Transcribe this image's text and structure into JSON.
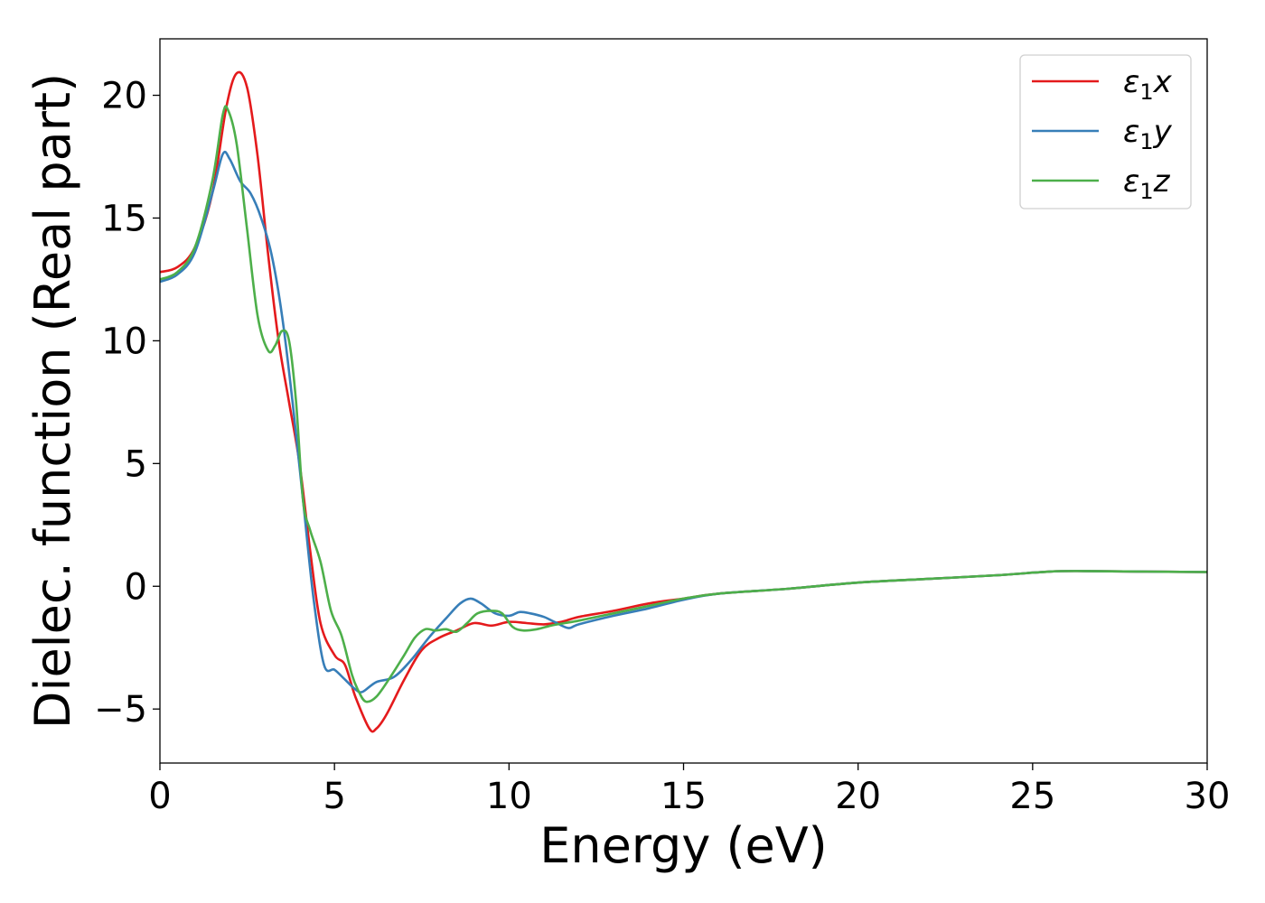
{
  "chart_data": {
    "type": "line",
    "title": "",
    "xlabel": "Energy (eV)",
    "ylabel": "Dielec. function (Real part)",
    "xlim": [
      0,
      30
    ],
    "ylim": [
      -7.2,
      22.3
    ],
    "xticks": [
      0,
      5,
      10,
      15,
      20,
      25,
      30
    ],
    "xtick_labels": [
      "0",
      "5",
      "10",
      "15",
      "20",
      "25",
      "30"
    ],
    "yticks": [
      -5,
      0,
      5,
      10,
      15,
      20
    ],
    "ytick_labels": [
      "−5",
      "0",
      "5",
      "10",
      "15",
      "20"
    ],
    "grid": false,
    "legend_position": "top-right",
    "series": [
      {
        "name": "ε1x",
        "legend_base": "ε",
        "legend_sub": "1",
        "legend_tail": "x",
        "color": "#e41a1c",
        "x": [
          0,
          0.5,
          1.0,
          1.5,
          1.9,
          2.2,
          2.5,
          2.8,
          3.1,
          3.4,
          3.7,
          4.0,
          4.3,
          4.6,
          5.0,
          5.3,
          5.6,
          6.0,
          6.2,
          6.5,
          7.0,
          7.5,
          8.0,
          8.5,
          9.0,
          9.5,
          10.0,
          10.5,
          11.0,
          11.5,
          12.0,
          13.0,
          14.0,
          15.0,
          16.0,
          18.0,
          20.0,
          22.0,
          24.0,
          25.5,
          26.5,
          28.0,
          30.0
        ],
        "y": [
          12.8,
          13.0,
          13.8,
          16.0,
          19.5,
          20.9,
          20.3,
          17.5,
          13.5,
          10.0,
          7.5,
          5.0,
          1.5,
          -1.5,
          -2.8,
          -3.2,
          -4.5,
          -5.8,
          -5.8,
          -5.2,
          -3.8,
          -2.6,
          -2.1,
          -1.8,
          -1.5,
          -1.6,
          -1.45,
          -1.5,
          -1.55,
          -1.45,
          -1.25,
          -1.0,
          -0.7,
          -0.5,
          -0.3,
          -0.1,
          0.15,
          0.3,
          0.45,
          0.6,
          0.62,
          0.6,
          0.58
        ]
      },
      {
        "name": "ε1y",
        "legend_base": "ε",
        "legend_sub": "1",
        "legend_tail": "y",
        "color": "#377eb8",
        "x": [
          0,
          0.5,
          1.0,
          1.5,
          1.8,
          2.0,
          2.3,
          2.6,
          2.9,
          3.2,
          3.5,
          3.8,
          4.1,
          4.4,
          4.7,
          5.0,
          5.3,
          5.6,
          5.8,
          6.2,
          6.7,
          7.2,
          7.7,
          8.2,
          8.6,
          8.9,
          9.2,
          9.6,
          10.0,
          10.3,
          10.6,
          11.0,
          11.3,
          11.7,
          12.0,
          13.0,
          14.0,
          15.0,
          16.0,
          18.0,
          20.0,
          22.0,
          24.0,
          25.5,
          26.5,
          28.0,
          30.0
        ],
        "y": [
          12.4,
          12.7,
          13.6,
          16.0,
          17.6,
          17.4,
          16.5,
          16.0,
          15.0,
          13.5,
          11.0,
          7.5,
          3.5,
          -0.5,
          -3.2,
          -3.4,
          -3.8,
          -4.2,
          -4.3,
          -3.9,
          -3.7,
          -3.0,
          -2.1,
          -1.3,
          -0.7,
          -0.5,
          -0.7,
          -1.1,
          -1.2,
          -1.05,
          -1.1,
          -1.25,
          -1.45,
          -1.7,
          -1.55,
          -1.2,
          -0.9,
          -0.55,
          -0.3,
          -0.1,
          0.15,
          0.3,
          0.45,
          0.6,
          0.62,
          0.6,
          0.58
        ]
      },
      {
        "name": "ε1z",
        "legend_base": "ε",
        "legend_sub": "1",
        "legend_tail": "z",
        "color": "#4daf4a",
        "x": [
          0,
          0.5,
          1.0,
          1.5,
          1.8,
          1.95,
          2.2,
          2.5,
          2.8,
          3.1,
          3.3,
          3.5,
          3.7,
          3.9,
          4.1,
          4.3,
          4.6,
          4.9,
          5.2,
          5.5,
          5.7,
          5.9,
          6.2,
          6.6,
          7.0,
          7.3,
          7.6,
          7.9,
          8.2,
          8.5,
          8.8,
          9.1,
          9.5,
          9.8,
          10.1,
          10.4,
          10.8,
          11.2,
          11.6,
          12.0,
          13.0,
          14.0,
          15.0,
          16.0,
          18.0,
          20.0,
          22.0,
          24.0,
          25.5,
          26.5,
          28.0,
          30.0
        ],
        "y": [
          12.5,
          12.8,
          13.8,
          16.5,
          19.2,
          19.4,
          18.0,
          14.5,
          11.0,
          9.6,
          9.8,
          10.4,
          10.0,
          7.5,
          3.5,
          2.3,
          1.0,
          -1.0,
          -2.0,
          -3.6,
          -4.3,
          -4.7,
          -4.5,
          -3.7,
          -2.8,
          -2.1,
          -1.75,
          -1.8,
          -1.75,
          -1.85,
          -1.5,
          -1.1,
          -1.0,
          -1.1,
          -1.65,
          -1.8,
          -1.75,
          -1.6,
          -1.5,
          -1.4,
          -1.1,
          -0.8,
          -0.5,
          -0.3,
          -0.1,
          0.15,
          0.3,
          0.45,
          0.6,
          0.62,
          0.6,
          0.58
        ]
      }
    ]
  }
}
